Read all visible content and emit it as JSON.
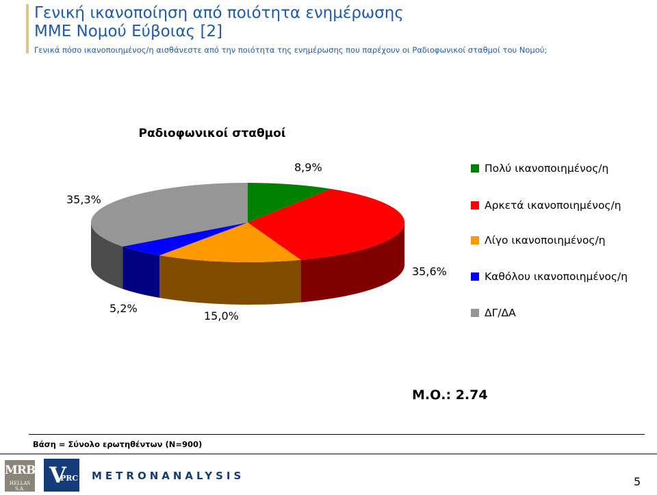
{
  "header": {
    "title_line1": "Γενική ικανοποίηση από ποιότητα ενημέρωσης",
    "title_line2": "ΜΜΕ Νομού Εύβοιας [2]",
    "subtitle": "Γενικά πόσο ικανοποιημένος/η αισθάνεστε από την ποιότητα της ενημέρωσης που παρέχουν οι Ραδιοφωνικοί σταθμοί του Νομού;"
  },
  "chart_data": {
    "type": "pie",
    "title": "Ραδιοφωνικοί σταθμοί",
    "categories": [
      "Πολύ ικανοποιημένος/η",
      "Αρκετά ικανοποιημένος/η",
      "Λίγο ικανοποιημένος/η",
      "Καθόλου ικανοποιημένος/η",
      "ΔΓ/ΔΑ"
    ],
    "values": [
      8.9,
      35.6,
      15.0,
      5.2,
      35.3
    ],
    "value_labels": [
      "8,9%",
      "35,6%",
      "15,0%",
      "5,2%",
      "35,3%"
    ],
    "colors": [
      "#008000",
      "#ff0000",
      "#ff9900",
      "#0000ff",
      "#969696"
    ],
    "legend_position": "right",
    "style": "3d"
  },
  "mean_label": "Μ.Ο.: 2.74",
  "base_note": "Βάση = Σύνολο ερωτηθέντων (Ν=900)",
  "logos": {
    "mrb_main": "MRB",
    "mrb_sub": "HELLAS S.A.",
    "vprc_v": "V",
    "vprc_rest": "PRC",
    "metron": "METRONANALYSIS"
  },
  "page_number": "5"
}
